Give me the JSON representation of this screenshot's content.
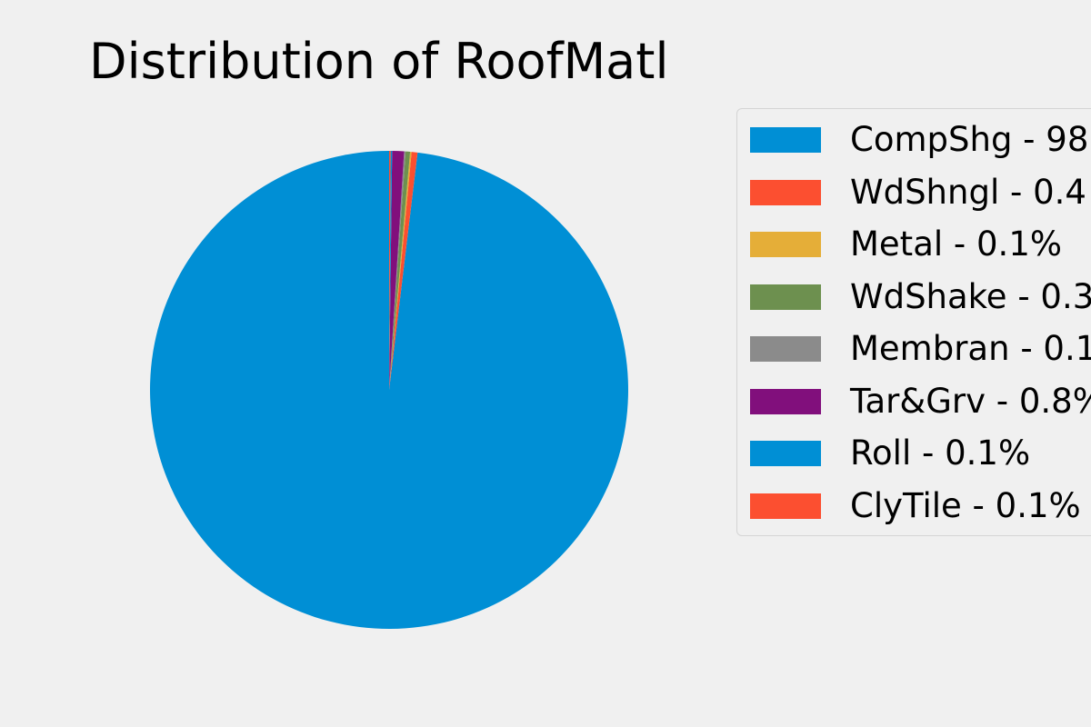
{
  "chart_data": {
    "type": "pie",
    "title": "Distribution of RoofMatl",
    "start_angle_deg": 90,
    "direction": "counterclockwise",
    "slices": [
      {
        "label": "CompShg",
        "legend_text": "CompShg - 98",
        "value": 98.2,
        "color": "#008fd5"
      },
      {
        "label": "WdShngl",
        "legend_text": "WdShngl - 0.4",
        "value": 0.4,
        "color": "#fc4f30"
      },
      {
        "label": "Metal",
        "legend_text": "Metal - 0.1%",
        "value": 0.1,
        "color": "#e5ae38"
      },
      {
        "label": "WdShake",
        "legend_text": "WdShake - 0.3",
        "value": 0.3,
        "color": "#6d904f"
      },
      {
        "label": "Membran",
        "legend_text": "Membran - 0.1",
        "value": 0.1,
        "color": "#8b8b8b"
      },
      {
        "label": "Tar&Grv",
        "legend_text": "Tar&Grv - 0.8%",
        "value": 0.8,
        "color": "#810f7c"
      },
      {
        "label": "Roll",
        "legend_text": "Roll - 0.1%",
        "value": 0.1,
        "color": "#008fd5"
      },
      {
        "label": "ClyTile",
        "legend_text": "ClyTile - 0.1%",
        "value": 0.1,
        "color": "#fc4f30"
      }
    ],
    "legend_position": "right"
  }
}
